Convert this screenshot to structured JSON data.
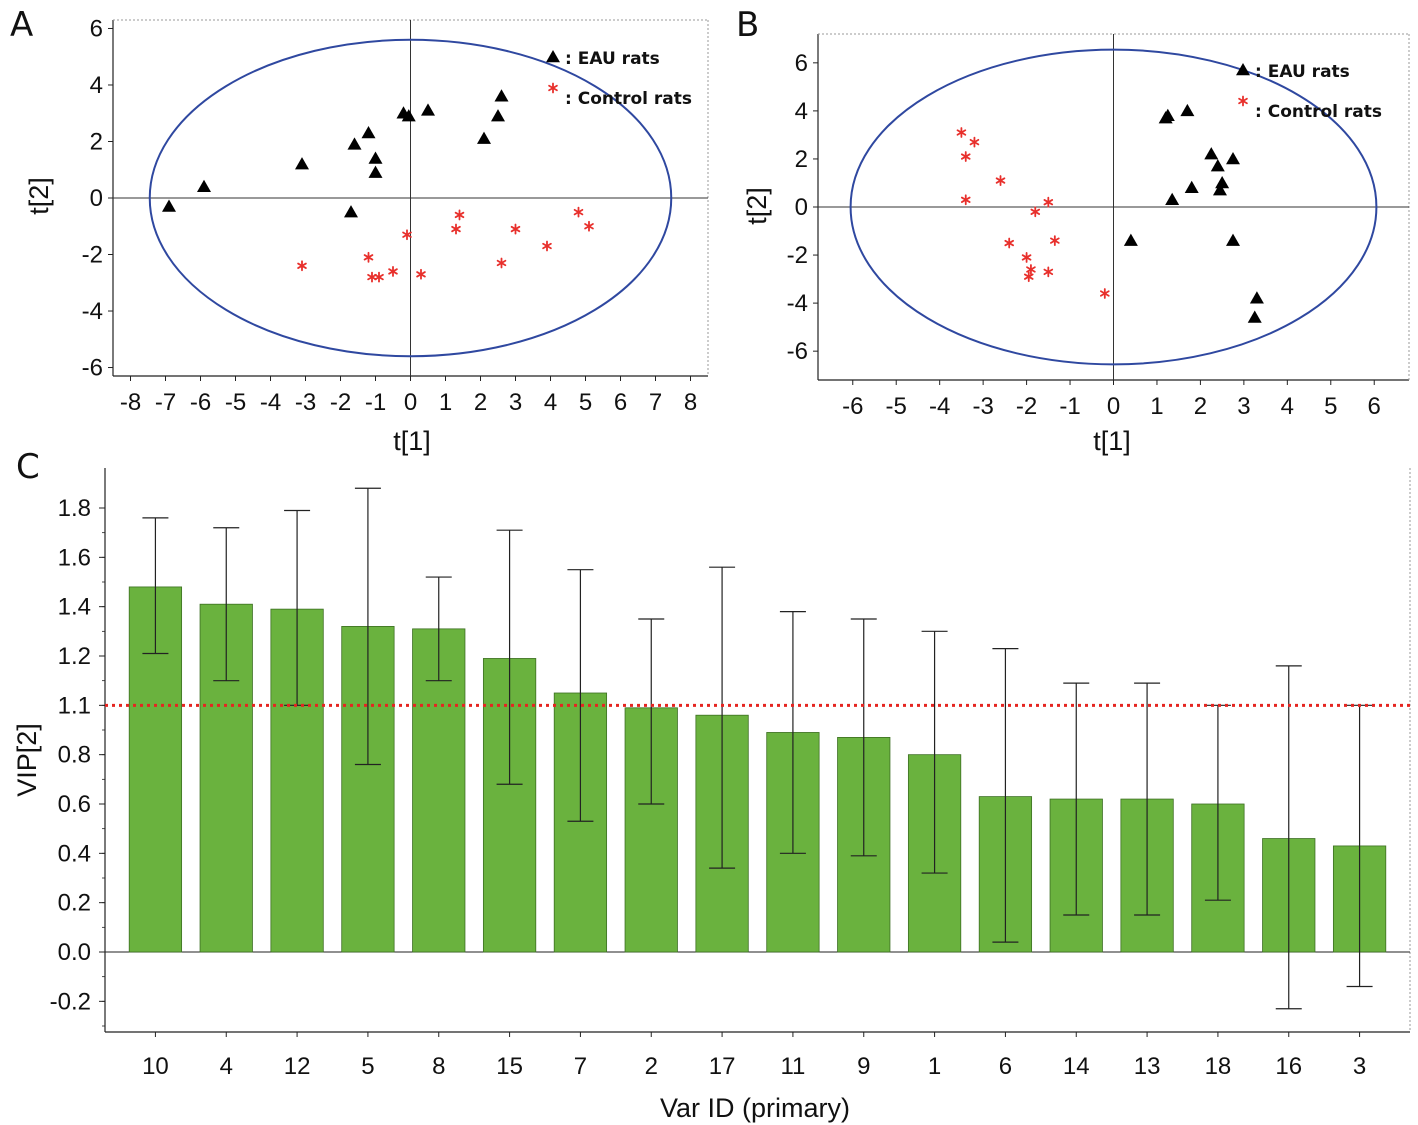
{
  "chart_data": [
    {
      "panel": "A",
      "type": "scatter",
      "xlabel": "t[1]",
      "ylabel": "t[2]",
      "xlim": [
        -8.5,
        8.5
      ],
      "ylim": [
        -6.3,
        6.3
      ],
      "xticks": [
        -8,
        -7,
        -6,
        -5,
        -4,
        -3,
        -2,
        -1,
        0,
        1,
        2,
        3,
        4,
        5,
        6,
        7,
        8
      ],
      "yticks": [
        -6,
        -4,
        -2,
        0,
        2,
        4,
        6
      ],
      "grid": false,
      "ellipse": {
        "cx": 0,
        "cy": 0,
        "rx": 7.45,
        "ry": 5.6
      },
      "legend_position": "top-right",
      "series": [
        {
          "name": "EAU rats",
          "marker": "triangle",
          "color": "#000000",
          "points": [
            [
              -6.9,
              -0.3
            ],
            [
              -5.9,
              0.4
            ],
            [
              -3.1,
              1.2
            ],
            [
              -1.6,
              1.9
            ],
            [
              -1.2,
              2.3
            ],
            [
              -1.0,
              1.4
            ],
            [
              -1.0,
              0.9
            ],
            [
              -1.7,
              -0.5
            ],
            [
              -0.2,
              3.0
            ],
            [
              -0.05,
              2.9
            ],
            [
              0.5,
              3.1
            ],
            [
              2.1,
              2.1
            ],
            [
              2.5,
              2.9
            ],
            [
              2.6,
              3.6
            ]
          ]
        },
        {
          "name": "Control rats",
          "marker": "asterisk",
          "color": "#e8302c",
          "points": [
            [
              -3.1,
              -2.4
            ],
            [
              -1.2,
              -2.1
            ],
            [
              -1.1,
              -2.8
            ],
            [
              -0.9,
              -2.8
            ],
            [
              -0.5,
              -2.6
            ],
            [
              -0.1,
              -1.3
            ],
            [
              0.3,
              -2.7
            ],
            [
              1.3,
              -1.1
            ],
            [
              1.4,
              -0.6
            ],
            [
              2.6,
              -2.3
            ],
            [
              3.0,
              -1.1
            ],
            [
              3.9,
              -1.7
            ],
            [
              4.8,
              -0.5
            ],
            [
              5.1,
              -1.0
            ]
          ]
        }
      ]
    },
    {
      "panel": "B",
      "type": "scatter",
      "xlabel": "t[1]",
      "ylabel": "t[2]",
      "xlim": [
        -6.8,
        6.8
      ],
      "ylim": [
        -7.2,
        7.2
      ],
      "xticks": [
        -6,
        -5,
        -4,
        -3,
        -2,
        -1,
        0,
        1,
        2,
        3,
        4,
        5,
        6
      ],
      "yticks": [
        -6,
        -4,
        -2,
        0,
        2,
        4,
        6
      ],
      "grid": false,
      "ellipse": {
        "cx": 0,
        "cy": 0,
        "rx": 6.05,
        "ry": 6.55
      },
      "legend_position": "top-right",
      "series": [
        {
          "name": "EAU rats",
          "marker": "triangle",
          "color": "#000000",
          "points": [
            [
              0.4,
              -1.4
            ],
            [
              1.2,
              3.7
            ],
            [
              1.25,
              3.8
            ],
            [
              1.7,
              4.0
            ],
            [
              1.35,
              0.3
            ],
            [
              1.8,
              0.8
            ],
            [
              2.25,
              2.2
            ],
            [
              2.4,
              1.7
            ],
            [
              2.5,
              1.0
            ],
            [
              2.45,
              0.7
            ],
            [
              2.75,
              2.0
            ],
            [
              2.75,
              -1.4
            ],
            [
              3.3,
              -3.8
            ],
            [
              3.25,
              -4.6
            ]
          ]
        },
        {
          "name": "Control rats",
          "marker": "asterisk",
          "color": "#e8302c",
          "points": [
            [
              -3.5,
              3.1
            ],
            [
              -3.4,
              2.1
            ],
            [
              -3.2,
              2.7
            ],
            [
              -3.4,
              0.3
            ],
            [
              -2.6,
              1.1
            ],
            [
              -2.4,
              -1.5
            ],
            [
              -1.8,
              -0.2
            ],
            [
              -2.0,
              -2.1
            ],
            [
              -1.9,
              -2.6
            ],
            [
              -1.95,
              -2.9
            ],
            [
              -1.5,
              0.2
            ],
            [
              -1.5,
              -2.7
            ],
            [
              -1.35,
              -1.4
            ],
            [
              -0.2,
              -3.6
            ]
          ]
        }
      ]
    },
    {
      "panel": "C",
      "type": "bar",
      "xlabel": "Var ID (primary)",
      "ylabel": "VIP[2]",
      "ylim": [
        -0.35,
        1.9
      ],
      "yticks": [
        -0.2,
        0.0,
        0.2,
        0.4,
        0.6,
        0.8,
        1.1,
        1.2,
        1.4,
        1.6,
        1.8
      ],
      "ytick_labels": [
        "-0.2",
        "0.0",
        "0.2",
        "0.4",
        "0.6",
        "0.8",
        "1.1",
        "1.2",
        "1.4",
        "1.6",
        "1.8"
      ],
      "threshold_line": 1.0,
      "threshold_color": "#e52521",
      "bar_color": "#6ab23e",
      "grid": false,
      "categories": [
        "10",
        "4",
        "12",
        "5",
        "8",
        "15",
        "7",
        "2",
        "17",
        "11",
        "9",
        "1",
        "6",
        "14",
        "13",
        "18",
        "16",
        "3"
      ],
      "values": [
        1.48,
        1.41,
        1.39,
        1.32,
        1.31,
        1.19,
        1.05,
        0.99,
        0.96,
        0.89,
        0.87,
        0.8,
        0.63,
        0.62,
        0.62,
        0.6,
        0.46,
        0.43
      ],
      "error_low": [
        1.21,
        1.1,
        1.0,
        0.76,
        1.1,
        0.68,
        0.53,
        0.6,
        0.34,
        0.4,
        0.39,
        0.32,
        0.04,
        0.15,
        0.15,
        0.21,
        -0.23,
        -0.14
      ],
      "error_high": [
        1.76,
        1.72,
        1.79,
        1.88,
        1.52,
        1.71,
        1.55,
        1.35,
        1.56,
        1.38,
        1.35,
        1.3,
        1.23,
        1.09,
        1.09,
        1.0,
        1.16,
        1.0
      ]
    }
  ]
}
